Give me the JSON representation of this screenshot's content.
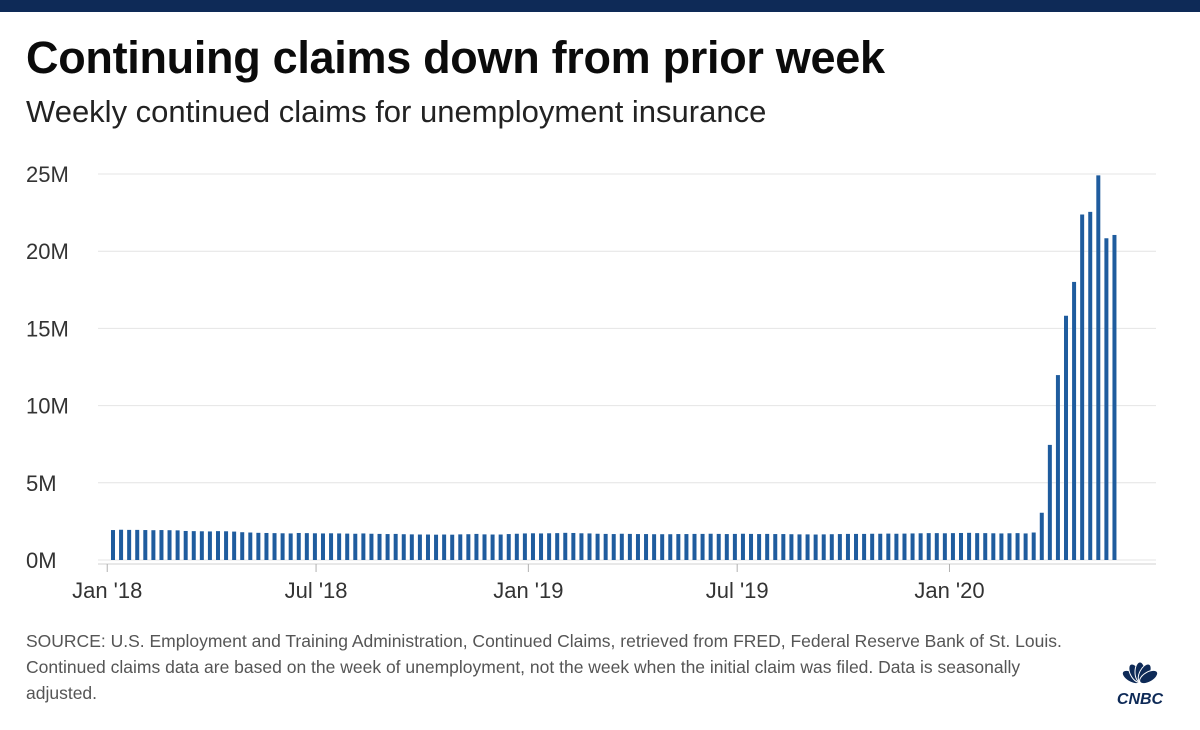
{
  "header": {
    "title": "Continuing claims down from prior week",
    "subtitle": "Weekly continued claims for unemployment insurance"
  },
  "footer": {
    "source": "SOURCE: U.S. Employment and Training Administration, Continued Claims, retrieved from FRED, Federal Reserve Bank of St. Louis. Continued claims data are based on the week of unemployment, not the week when the initial claim was filed. Data is seasonally adjusted.",
    "logo_text": "CNBC"
  },
  "colors": {
    "bar": "#1f5c9e",
    "top_band": "#0e2a57",
    "gridline": "#e4e4e4",
    "logo": "#0e2a57"
  },
  "chart_data": {
    "type": "bar",
    "ylim": [
      0,
      25000000
    ],
    "yticks": [
      {
        "value": 0,
        "label": "0M"
      },
      {
        "value": 5000000,
        "label": "5M"
      },
      {
        "value": 10000000,
        "label": "10M"
      },
      {
        "value": 15000000,
        "label": "15M"
      },
      {
        "value": 20000000,
        "label": "20M"
      },
      {
        "value": 25000000,
        "label": "25M"
      }
    ],
    "xticks": [
      {
        "date": "2018-01-01",
        "label": "Jan '18"
      },
      {
        "date": "2018-07-01",
        "label": "Jul '18"
      },
      {
        "date": "2019-01-01",
        "label": "Jan '19"
      },
      {
        "date": "2019-07-01",
        "label": "Jul '19"
      },
      {
        "date": "2020-01-01",
        "label": "Jan '20"
      }
    ],
    "xlim": [
      "2017-12-24",
      "2020-06-28"
    ],
    "grid": true,
    "legend": "none",
    "series": [
      {
        "x": [
          "2018-01-06",
          "2018-01-13",
          "2018-01-20",
          "2018-01-27",
          "2018-02-03",
          "2018-02-10",
          "2018-02-17",
          "2018-02-24",
          "2018-03-03",
          "2018-03-10",
          "2018-03-17",
          "2018-03-24",
          "2018-03-31",
          "2018-04-07",
          "2018-04-14",
          "2018-04-21",
          "2018-04-28",
          "2018-05-05",
          "2018-05-12",
          "2018-05-19",
          "2018-05-26",
          "2018-06-02",
          "2018-06-09",
          "2018-06-16",
          "2018-06-23",
          "2018-06-30",
          "2018-07-07",
          "2018-07-14",
          "2018-07-21",
          "2018-07-28",
          "2018-08-04",
          "2018-08-11",
          "2018-08-18",
          "2018-08-25",
          "2018-09-01",
          "2018-09-08",
          "2018-09-15",
          "2018-09-22",
          "2018-09-29",
          "2018-10-06",
          "2018-10-13",
          "2018-10-20",
          "2018-10-27",
          "2018-11-03",
          "2018-11-10",
          "2018-11-17",
          "2018-11-24",
          "2018-12-01",
          "2018-12-08",
          "2018-12-15",
          "2018-12-22",
          "2018-12-29",
          "2019-01-05",
          "2019-01-12",
          "2019-01-19",
          "2019-01-26",
          "2019-02-02",
          "2019-02-09",
          "2019-02-16",
          "2019-02-23",
          "2019-03-02",
          "2019-03-09",
          "2019-03-16",
          "2019-03-23",
          "2019-03-30",
          "2019-04-06",
          "2019-04-13",
          "2019-04-20",
          "2019-04-27",
          "2019-05-04",
          "2019-05-11",
          "2019-05-18",
          "2019-05-25",
          "2019-06-01",
          "2019-06-08",
          "2019-06-15",
          "2019-06-22",
          "2019-06-29",
          "2019-07-06",
          "2019-07-13",
          "2019-07-20",
          "2019-07-27",
          "2019-08-03",
          "2019-08-10",
          "2019-08-17",
          "2019-08-24",
          "2019-08-31",
          "2019-09-07",
          "2019-09-14",
          "2019-09-21",
          "2019-09-28",
          "2019-10-05",
          "2019-10-12",
          "2019-10-19",
          "2019-10-26",
          "2019-11-02",
          "2019-11-09",
          "2019-11-16",
          "2019-11-23",
          "2019-11-30",
          "2019-12-07",
          "2019-12-14",
          "2019-12-21",
          "2019-12-28",
          "2020-01-04",
          "2020-01-11",
          "2020-01-18",
          "2020-01-25",
          "2020-02-01",
          "2020-02-08",
          "2020-02-15",
          "2020-02-22",
          "2020-02-29",
          "2020-03-07",
          "2020-03-14",
          "2020-03-21",
          "2020-03-28",
          "2020-04-04",
          "2020-04-11",
          "2020-04-18",
          "2020-04-25",
          "2020-05-02",
          "2020-05-09",
          "2020-05-16",
          "2020-05-23"
        ],
        "values": [
          1940000,
          1960000,
          1950000,
          1950000,
          1940000,
          1930000,
          1940000,
          1930000,
          1920000,
          1880000,
          1870000,
          1860000,
          1850000,
          1870000,
          1860000,
          1840000,
          1800000,
          1780000,
          1760000,
          1750000,
          1740000,
          1730000,
          1720000,
          1750000,
          1740000,
          1730000,
          1720000,
          1730000,
          1720000,
          1710000,
          1700000,
          1720000,
          1700000,
          1690000,
          1680000,
          1690000,
          1670000,
          1660000,
          1650000,
          1650000,
          1640000,
          1650000,
          1640000,
          1660000,
          1670000,
          1690000,
          1660000,
          1650000,
          1650000,
          1680000,
          1700000,
          1720000,
          1730000,
          1720000,
          1730000,
          1740000,
          1760000,
          1750000,
          1730000,
          1720000,
          1700000,
          1690000,
          1680000,
          1700000,
          1690000,
          1680000,
          1680000,
          1670000,
          1670000,
          1670000,
          1680000,
          1680000,
          1690000,
          1690000,
          1700000,
          1690000,
          1680000,
          1690000,
          1700000,
          1690000,
          1680000,
          1690000,
          1680000,
          1680000,
          1670000,
          1660000,
          1660000,
          1650000,
          1660000,
          1670000,
          1680000,
          1690000,
          1690000,
          1690000,
          1700000,
          1700000,
          1710000,
          1700000,
          1710000,
          1720000,
          1730000,
          1740000,
          1740000,
          1730000,
          1740000,
          1750000,
          1760000,
          1740000,
          1740000,
          1730000,
          1720000,
          1730000,
          1740000,
          1720000,
          1780000,
          3060000,
          7455000,
          11976000,
          15819000,
          18011000,
          22377000,
          22548000,
          24912000,
          20838000,
          21052000
        ]
      }
    ]
  }
}
